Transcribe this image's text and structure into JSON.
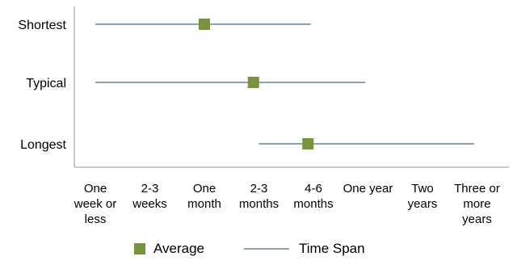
{
  "chart_data": {
    "type": "scatter",
    "title": "",
    "xlabel": "",
    "ylabel": "",
    "categories_x": [
      "One week or less",
      "2-3 weeks",
      "One month",
      "2-3 months",
      "4-6 months",
      "One year",
      "Two years",
      "Three or more years"
    ],
    "x_tick_lines": [
      [
        "One",
        "week or",
        "less"
      ],
      [
        "2-3",
        "weeks"
      ],
      [
        "One",
        "month"
      ],
      [
        "2-3",
        "months"
      ],
      [
        "4-6",
        "months"
      ],
      [
        "One year"
      ],
      [
        "Two",
        "years"
      ],
      [
        "Three or",
        "more",
        "years"
      ]
    ],
    "categories_y": [
      "Shortest",
      "Typical",
      "Longest"
    ],
    "series": [
      {
        "name": "Time Span",
        "kind": "range",
        "ranges": [
          {
            "category": "Shortest",
            "low": 0.0,
            "high": 3.95
          },
          {
            "category": "Typical",
            "low": 0.0,
            "high": 4.95
          },
          {
            "category": "Longest",
            "low": 3.0,
            "high": 6.95
          }
        ]
      },
      {
        "name": "Average",
        "kind": "point",
        "points": [
          {
            "category": "Shortest",
            "value": 2.0
          },
          {
            "category": "Typical",
            "value": 2.9
          },
          {
            "category": "Longest",
            "value": 3.9
          }
        ]
      }
    ],
    "legend": [
      {
        "name": "Average",
        "marker": "square"
      },
      {
        "name": "Time Span",
        "marker": "line"
      }
    ],
    "legend_position": "bottom",
    "grid": false,
    "colors": {
      "average": "#77933c",
      "time_span": "#4a6b84",
      "axis": "#a6a6a6"
    }
  }
}
